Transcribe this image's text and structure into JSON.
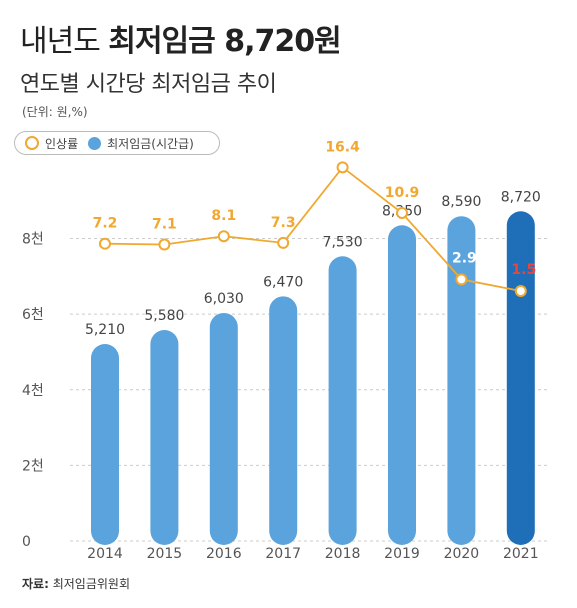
{
  "header": {
    "title_prefix": "내년도",
    "title_strong": "최저임금 8,720원",
    "subtitle": "연도별 시간당 최저임금 추이",
    "unit": "(단위: 원,%)"
  },
  "legend": {
    "line_label": "인상률",
    "bar_label": "최저임금(시간급)"
  },
  "source": {
    "label": "자료:",
    "text": "최저임금위원회"
  },
  "colors": {
    "bar": "#5ba3dc",
    "bar_highlight": "#1f6fb8",
    "line": "#f0a830",
    "line_label": "#f0a830",
    "highlight_label": "#e8453c",
    "axis_text": "#555555",
    "grid": "#cccccc"
  },
  "chart_data": {
    "type": "bar",
    "categories": [
      "2014",
      "2015",
      "2016",
      "2017",
      "2018",
      "2019",
      "2020",
      "2021"
    ],
    "series": [
      {
        "name": "최저임금(시간급)",
        "type": "bar",
        "values": [
          5210,
          5580,
          6030,
          6470,
          7530,
          8350,
          8590,
          8720
        ],
        "labels": [
          "5,210",
          "5,580",
          "6,030",
          "6,470",
          "7,530",
          "8,350",
          "8,590",
          "8,720"
        ]
      },
      {
        "name": "인상률",
        "type": "line",
        "values": [
          7.2,
          7.1,
          8.1,
          7.3,
          16.4,
          10.9,
          2.9,
          1.5
        ],
        "labels": [
          "7.2",
          "7.1",
          "8.1",
          "7.3",
          "16.4",
          "10.9",
          "2.9",
          "1.5"
        ]
      }
    ],
    "yticks": [
      {
        "value": 0,
        "label": "0"
      },
      {
        "value": 2000,
        "label": "2천"
      },
      {
        "value": 4000,
        "label": "4천"
      },
      {
        "value": 6000,
        "label": "6천"
      },
      {
        "value": 8000,
        "label": "8천"
      }
    ],
    "ylim": [
      0,
      9000
    ],
    "highlight_category": "2021"
  }
}
